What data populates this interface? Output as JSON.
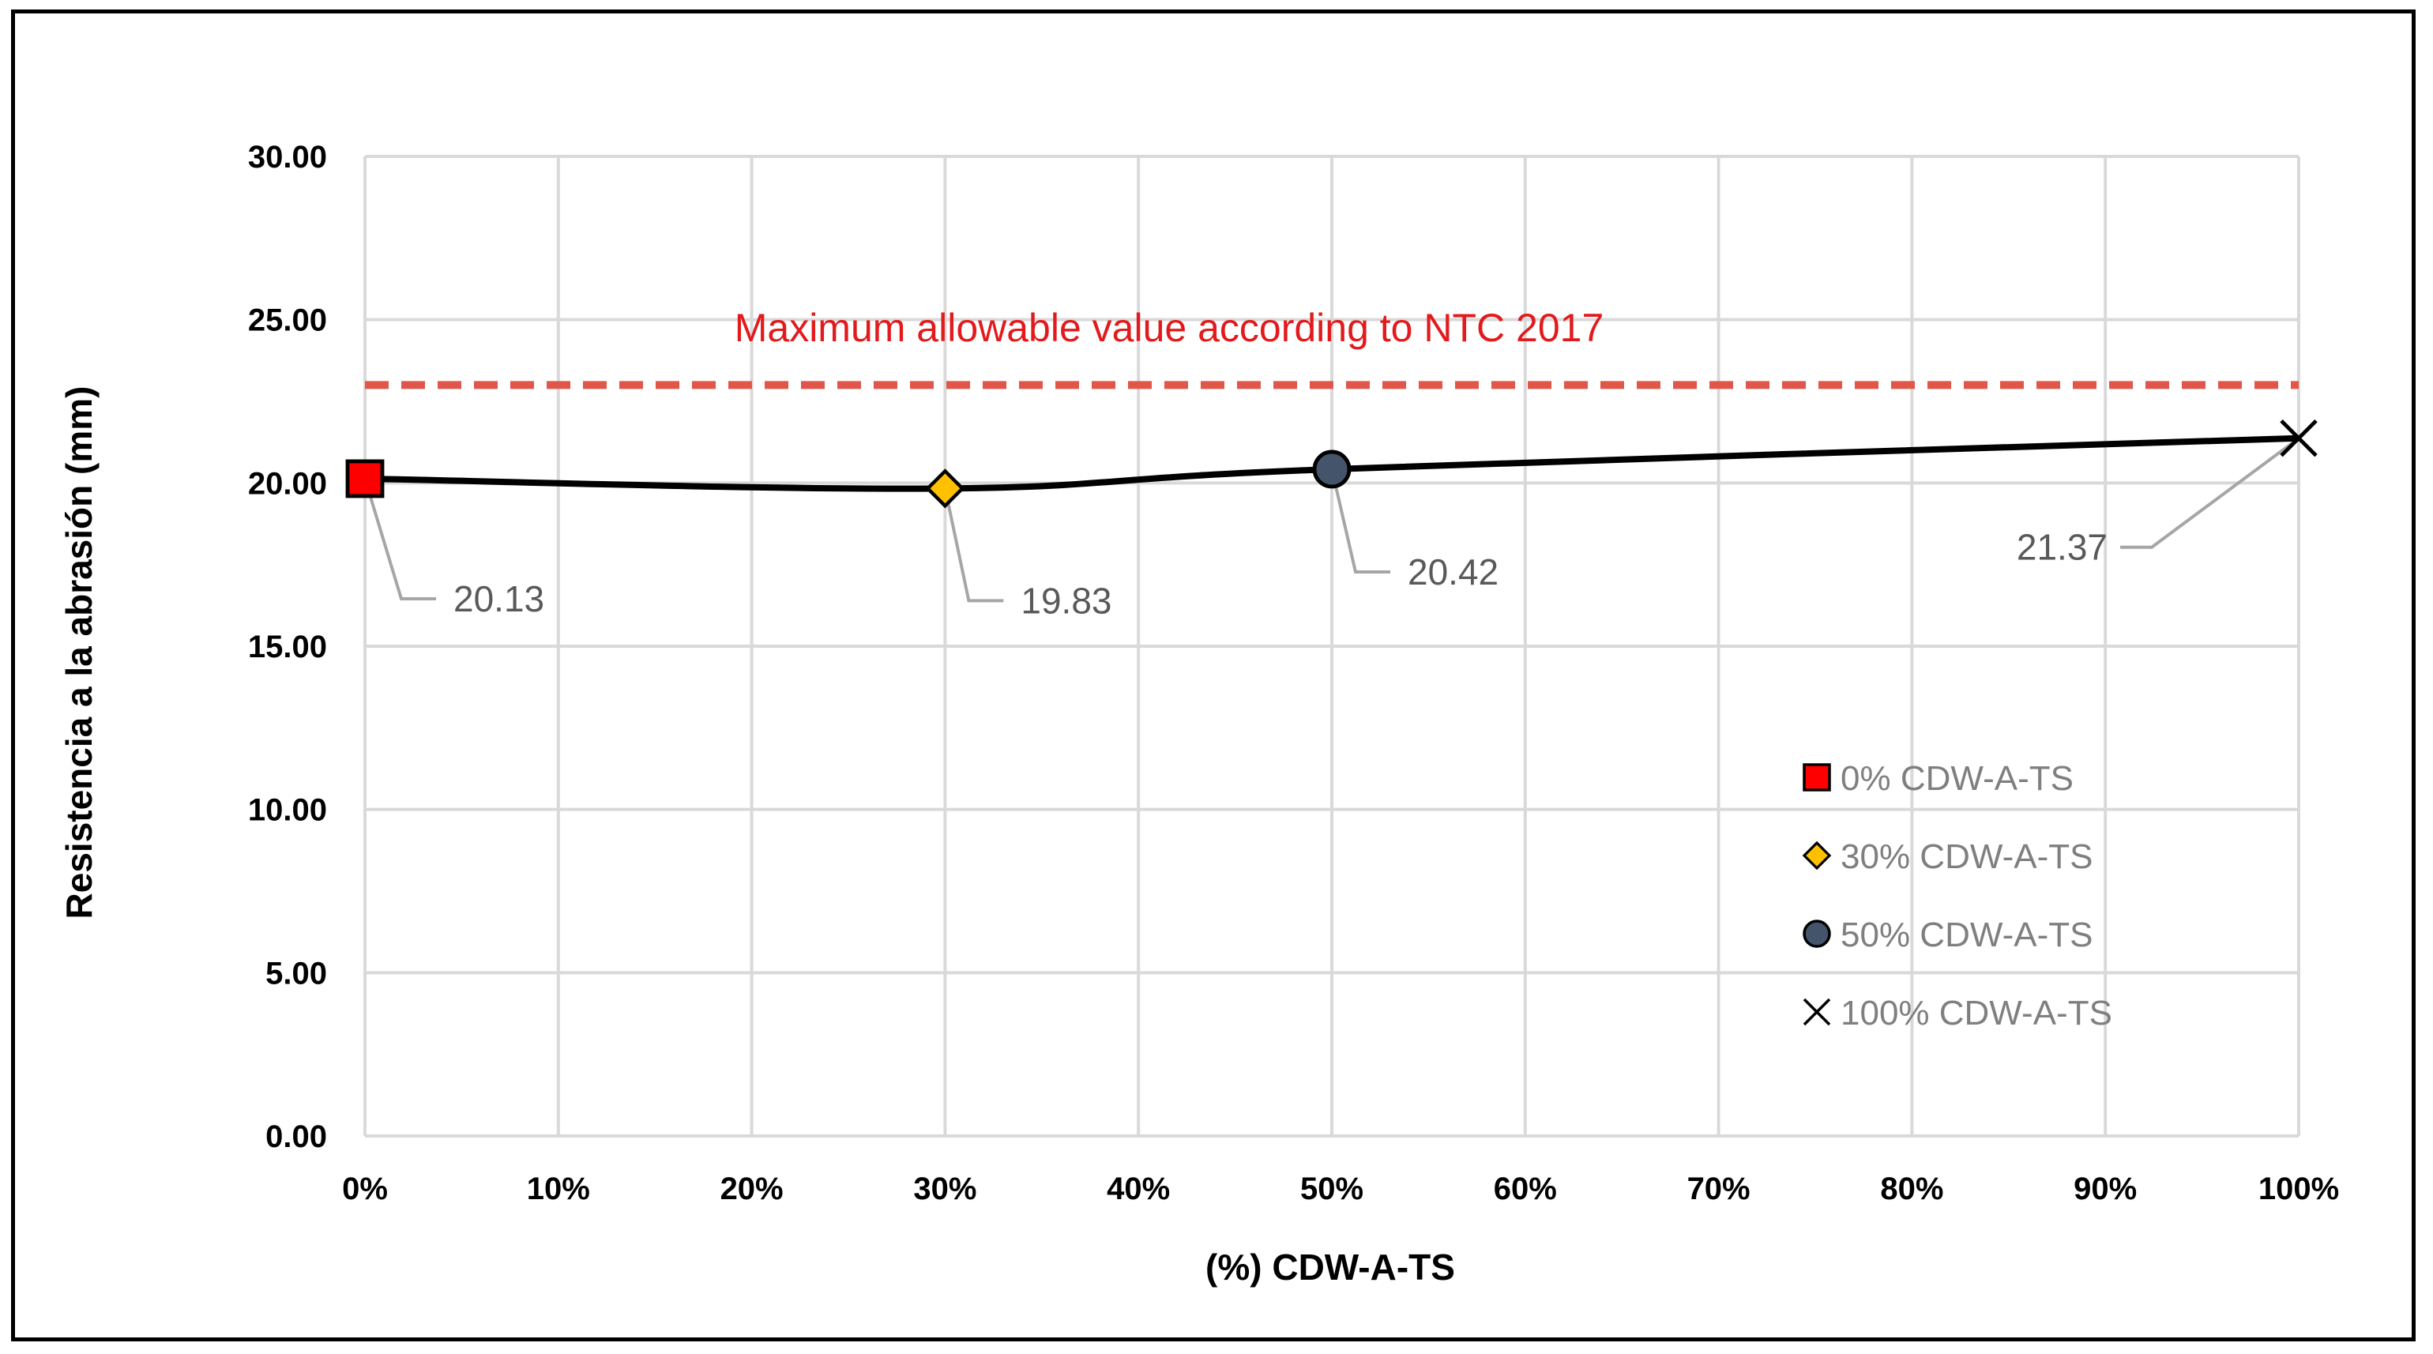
{
  "chart_data": {
    "type": "line",
    "title": "",
    "xlabel": "(%) CDW-A-TS",
    "ylabel": "Resistencia a la abrasión (mm)",
    "xlim": [
      0,
      100
    ],
    "ylim": [
      0,
      30
    ],
    "x_ticks": [
      "0%",
      "10%",
      "20%",
      "30%",
      "40%",
      "50%",
      "60%",
      "70%",
      "80%",
      "90%",
      "100%"
    ],
    "y_ticks": [
      "0.00",
      "5.00",
      "10.00",
      "15.00",
      "20.00",
      "25.00",
      "30.00"
    ],
    "grid": true,
    "series": [
      {
        "name": "Resistencia a la abrasión",
        "x": [
          0,
          30,
          50,
          100
        ],
        "values": [
          20.13,
          19.83,
          20.42,
          21.37
        ],
        "labels": [
          "20.13",
          "19.83",
          "20.42",
          "21.37"
        ],
        "color": "#000000"
      }
    ],
    "reference_line": {
      "value": 23,
      "label": "Maximum allowable value according to NTC 2017",
      "color": "#e0574a",
      "style": "dashed"
    },
    "legend": {
      "placement": "bottom-right",
      "entries": [
        {
          "label": "0% CDW-A-TS",
          "marker": "square",
          "color": "#ff0000"
        },
        {
          "label": "30% CDW-A-TS",
          "marker": "diamond",
          "color": "#ffc000"
        },
        {
          "label": "50% CDW-A-TS",
          "marker": "circle",
          "color": "#44546a"
        },
        {
          "label": "100% CDW-A-TS",
          "marker": "x",
          "color": "#000000"
        }
      ]
    }
  }
}
